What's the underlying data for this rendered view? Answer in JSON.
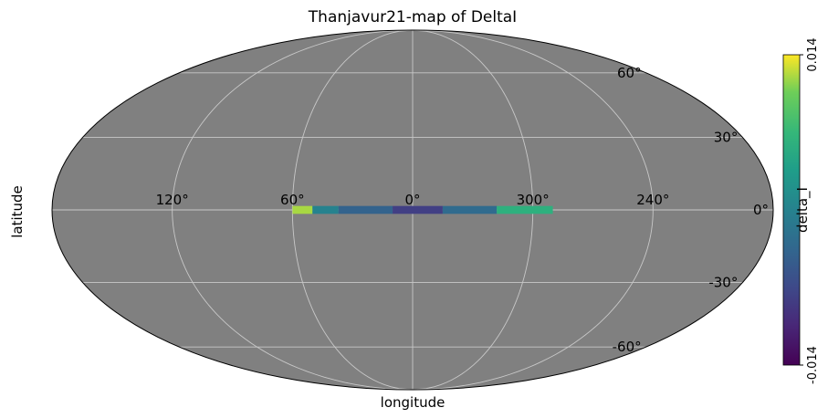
{
  "chart_data": {
    "type": "heatmap",
    "projection": "mollweide",
    "title": "Thanjavur21-map of DeltaI",
    "xlabel": "longitude",
    "ylabel": "latitude",
    "x_tick_labels": [
      "120°",
      "60°",
      "0°",
      "300°",
      "240°"
    ],
    "x_tick_values": [
      120,
      60,
      0,
      300,
      240
    ],
    "y_tick_labels": [
      "60°",
      "30°",
      "0°",
      "-30°",
      "-60°"
    ],
    "y_tick_values": [
      60,
      30,
      0,
      -30,
      -60
    ],
    "grid": true,
    "background_color": "#808080",
    "colormap": "viridis",
    "colorbar": {
      "label": "delta_I",
      "min": -0.014,
      "max": 0.014,
      "tick_labels": [
        "0.014",
        "-0.014"
      ]
    },
    "data_region": {
      "longitude_range_deg": [
        60,
        290
      ],
      "latitude_range_deg": [
        -1.6,
        1.6
      ],
      "segments": [
        {
          "lon_start": 60,
          "lon_end": 50,
          "value": 0.012
        },
        {
          "lon_start": 50,
          "lon_end": 37,
          "value": 0.0
        },
        {
          "lon_start": 37,
          "lon_end": 10,
          "value": -0.004
        },
        {
          "lon_start": 10,
          "lon_end": 345,
          "value": -0.008
        },
        {
          "lon_start": 345,
          "lon_end": 318,
          "value": -0.003
        },
        {
          "lon_start": 318,
          "lon_end": 290,
          "value": 0.006
        }
      ]
    }
  }
}
